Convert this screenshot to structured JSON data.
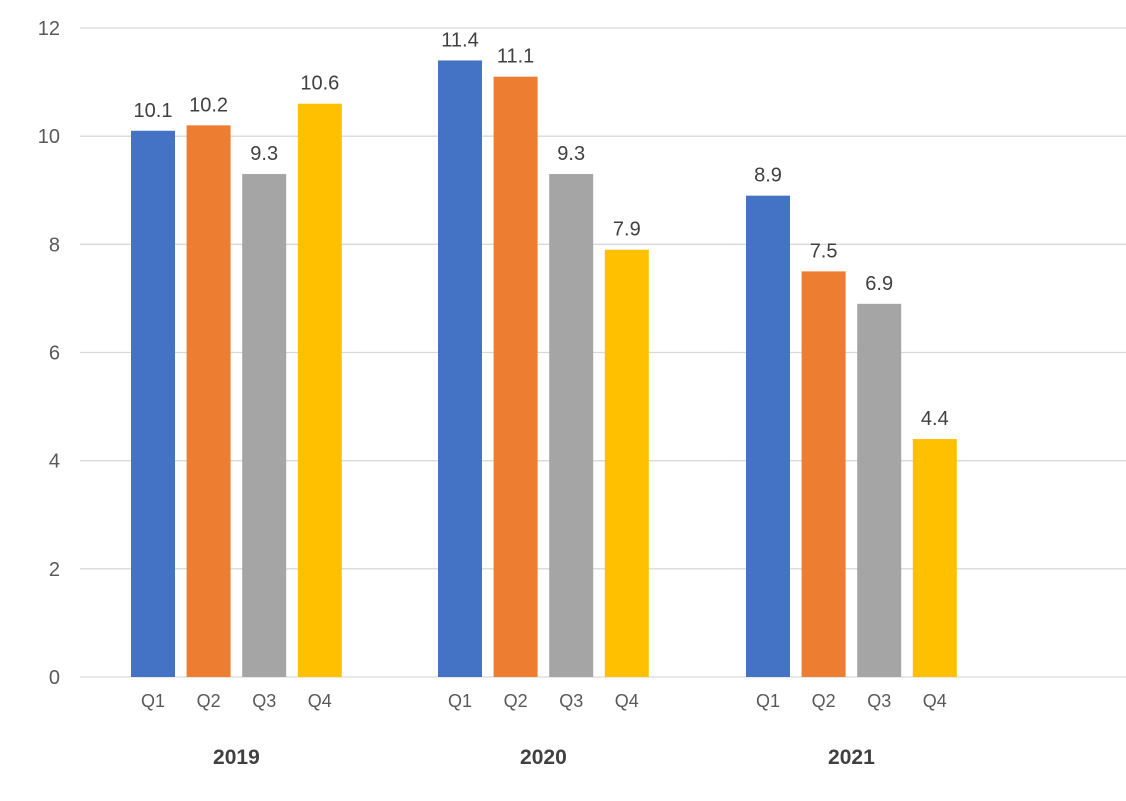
{
  "chart_data": {
    "type": "bar",
    "title": "",
    "xlabel": "",
    "ylabel": "",
    "ylim": [
      0,
      12
    ],
    "yticks": [
      0,
      2,
      4,
      6,
      8,
      10,
      12
    ],
    "grid": true,
    "groups": [
      {
        "label": "2019",
        "bars": [
          {
            "label": "Q1",
            "value": 10.1
          },
          {
            "label": "Q2",
            "value": 10.2
          },
          {
            "label": "Q3",
            "value": 9.3
          },
          {
            "label": "Q4",
            "value": 10.6
          }
        ]
      },
      {
        "label": "2020",
        "bars": [
          {
            "label": "Q1",
            "value": 11.4
          },
          {
            "label": "Q2",
            "value": 11.1
          },
          {
            "label": "Q3",
            "value": 9.3
          },
          {
            "label": "Q4",
            "value": 7.9
          }
        ]
      },
      {
        "label": "2021",
        "bars": [
          {
            "label": "Q1",
            "value": 8.9
          },
          {
            "label": "Q2",
            "value": 7.5
          },
          {
            "label": "Q3",
            "value": 6.9
          },
          {
            "label": "Q4",
            "value": 4.4
          }
        ]
      }
    ],
    "colors": {
      "Q1": "#4472c4",
      "Q2": "#ed7d31",
      "Q3": "#a5a5a5",
      "Q4": "#ffc000"
    }
  }
}
